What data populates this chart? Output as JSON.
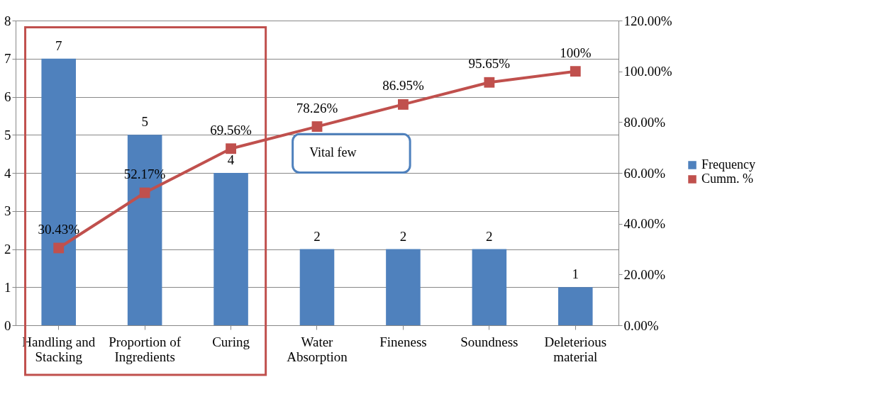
{
  "chart_data": {
    "type": "bar",
    "categories": [
      "Handling and Stacking",
      "Proportion of Ingredients",
      "Curing",
      "Water Absorption",
      "Fineness",
      "Soundness",
      "Deleterious material"
    ],
    "series": [
      {
        "name": "Frequency",
        "color": "#4f81bd",
        "values": [
          7,
          5,
          4,
          2,
          2,
          2,
          1
        ],
        "value_labels": [
          "7",
          "5",
          "4",
          "2",
          "2",
          "2",
          "1"
        ]
      },
      {
        "name": "Cumm. %",
        "type": "line",
        "axis": "y2",
        "color": "#c0504d",
        "marker": "square",
        "values": [
          30.43,
          52.17,
          69.56,
          78.26,
          86.95,
          95.65,
          100
        ],
        "value_labels": [
          "30.43%",
          "52.17%",
          "69.56%",
          "78.26%",
          "86.95%",
          "95.65%",
          "100%"
        ]
      }
    ],
    "ylim": [
      0,
      8
    ],
    "yticks": [
      0,
      1,
      2,
      3,
      4,
      5,
      6,
      7,
      8
    ],
    "y2lim": [
      0,
      120
    ],
    "y2ticks": [
      {
        "value": 0,
        "label": "0.00%"
      },
      {
        "value": 20,
        "label": "20.00%"
      },
      {
        "value": 40,
        "label": "40.00%"
      },
      {
        "value": 60,
        "label": "60.00%"
      },
      {
        "value": 80,
        "label": "80.00%"
      },
      {
        "value": 100,
        "label": "100.00%"
      },
      {
        "value": 120,
        "label": "120.00%"
      }
    ],
    "grid": "y",
    "legend": "right",
    "annotations": [
      "Vital few"
    ]
  }
}
